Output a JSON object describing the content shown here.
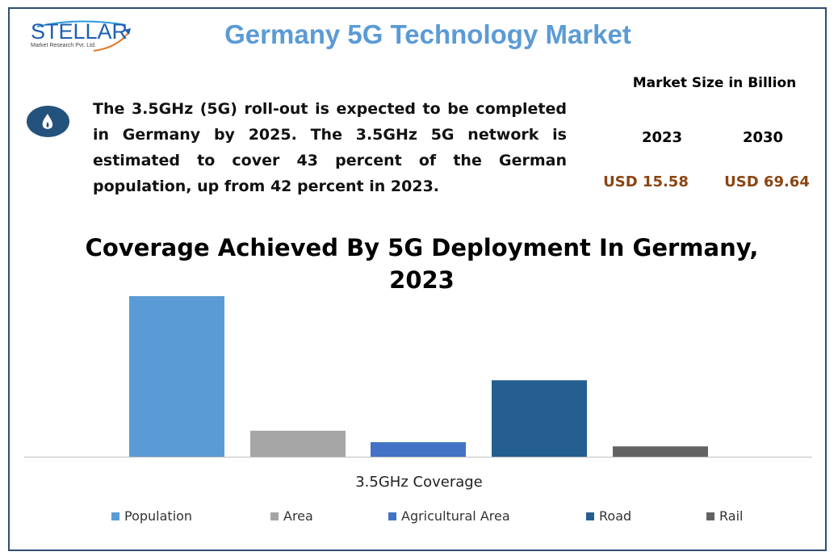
{
  "header": {
    "title": "Germany 5G Technology Market",
    "logo": {
      "name": "STELLAR",
      "subtitle": "Market Research Pvt. Ltd."
    }
  },
  "description": {
    "icon": "flame-icon",
    "text": "The 3.5GHz (5G) roll-out is expected to be completed in Germany by 2025. The 3.5GHz 5G network is estimated to cover 43 percent of the German population, up from 42 percent in 2023."
  },
  "market_size": {
    "title": "Market Size in Billion",
    "years": [
      "2023",
      "2030"
    ],
    "values": [
      "USD 15.58",
      "USD 69.64"
    ],
    "value_color": "#8b4513"
  },
  "chart_data": {
    "type": "bar",
    "title": "Coverage Achieved By 5G Deployment In Germany, 2023",
    "xlabel": "3.5GHz Coverage",
    "ylabel": "",
    "categories": [
      "3.5GHz Coverage"
    ],
    "series": [
      {
        "name": "Population",
        "values": [
          42
        ],
        "color": "#5b9bd5"
      },
      {
        "name": "Area",
        "values": [
          6.8
        ],
        "color": "#a5a5a5"
      },
      {
        "name": "Agricultural Area",
        "values": [
          3.8
        ],
        "color": "#4472c4"
      },
      {
        "name": "Road",
        "values": [
          20
        ],
        "color": "#255e91"
      },
      {
        "name": "Rail",
        "values": [
          2.7
        ],
        "color": "#636363"
      }
    ],
    "ylim": [
      0,
      42
    ],
    "grid": false,
    "legend": "bottom"
  }
}
